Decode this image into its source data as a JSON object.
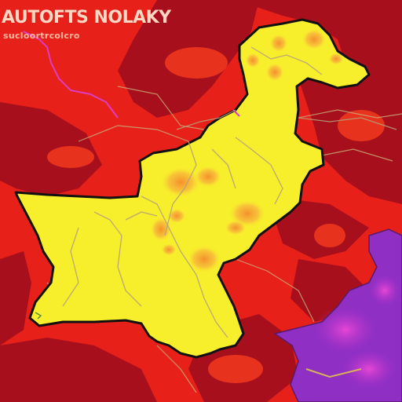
{
  "map": {
    "title": "AUTOFTS NOLAKY",
    "subtitle": "sucloortrcolcro",
    "colors": {
      "background": "#e8201a",
      "dark_region": "#a80f1c",
      "country_fill": "#f8ef2c",
      "hotspot": "#f6a23a",
      "neighbor_fill": "#8f2fc4",
      "neighbor_accent": "#e442d8",
      "outline": "#111111",
      "roads": "#b6a27a"
    },
    "regions": [
      {
        "name": "central-country",
        "fill": "yellow"
      },
      {
        "name": "neighbor-region-southeast",
        "fill": "purple-magenta"
      }
    ]
  }
}
